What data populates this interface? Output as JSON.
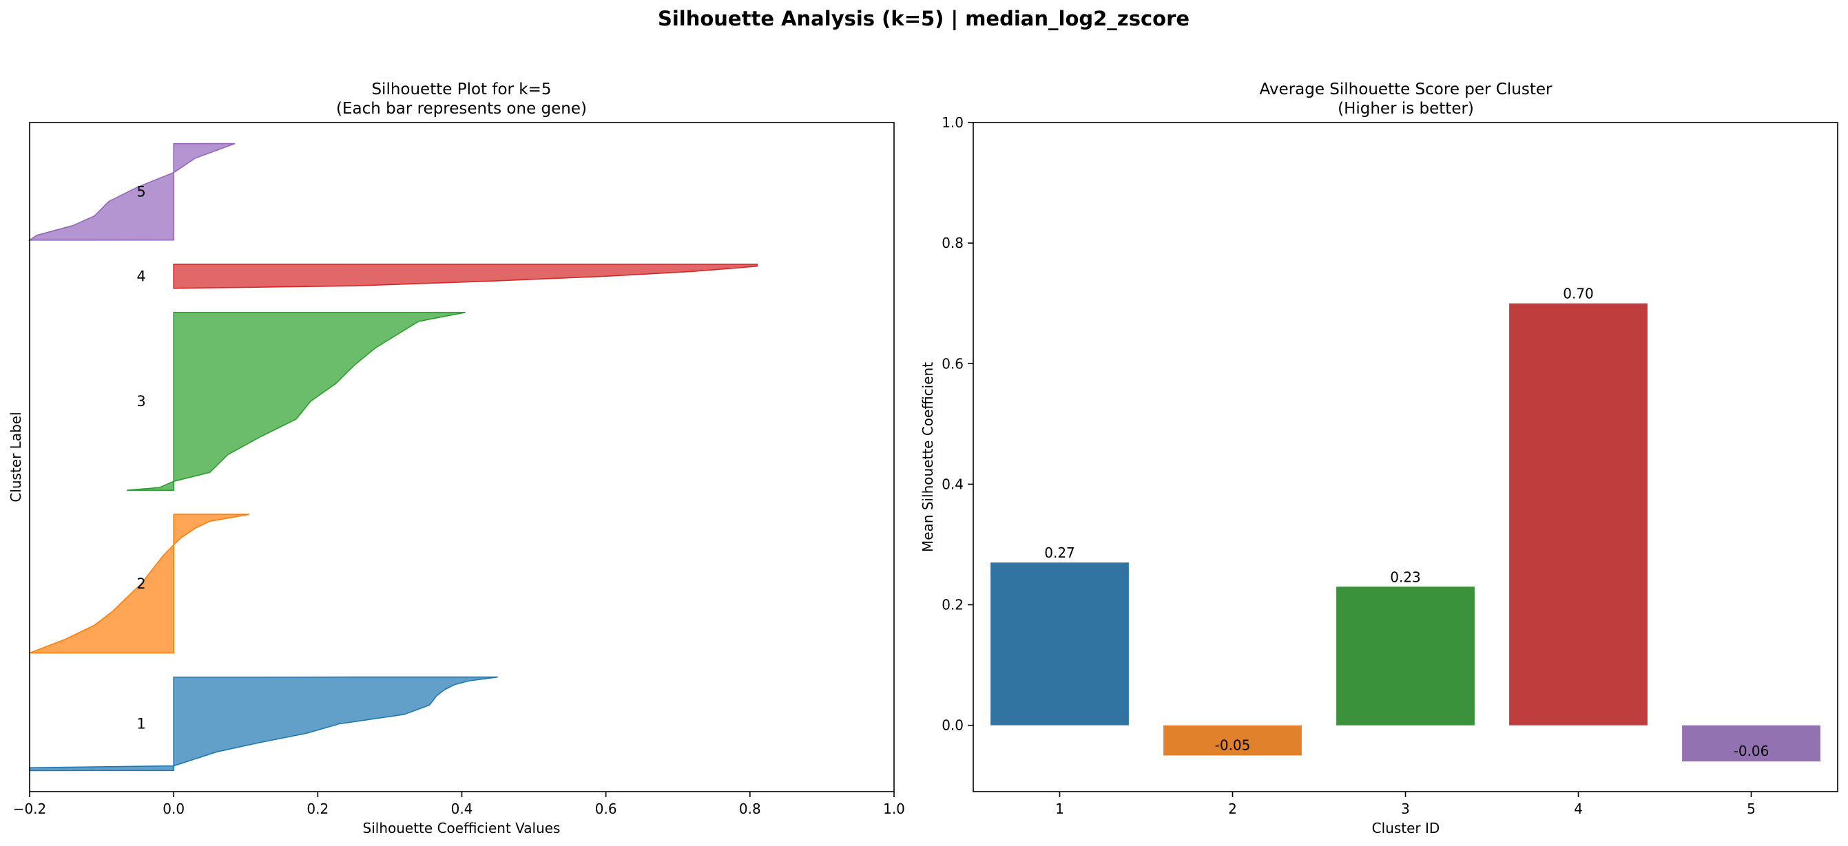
{
  "figure": {
    "suptitle": "Silhouette Analysis (k=5) | median_log2_zscore"
  },
  "chart_data": [
    {
      "type": "area",
      "title_line1": "Silhouette Plot for k=5",
      "title_line2": "(Each bar represents one gene)",
      "xlabel": "Silhouette Coefficient Values",
      "ylabel": "Cluster Label",
      "xlim": [
        -0.2,
        1.0
      ],
      "xticks": [
        -0.2,
        0.0,
        0.2,
        0.4,
        0.6,
        0.8,
        1.0
      ],
      "xtick_labels": [
        "−0.2",
        "0.0",
        "0.2",
        "0.4",
        "0.6",
        "0.8",
        "1.0"
      ],
      "ylim": [
        0,
        1110
      ],
      "clusters": [
        {
          "label": "1",
          "color": "#1f77b4",
          "y_lower": 35,
          "y_upper": 190,
          "profile": [
            [
              0,
              0.45
            ],
            [
              0.04,
              0.41
            ],
            [
              0.08,
              0.39
            ],
            [
              0.14,
              0.375
            ],
            [
              0.2,
              0.365
            ],
            [
              0.3,
              0.355
            ],
            [
              0.4,
              0.32
            ],
            [
              0.5,
              0.23
            ],
            [
              0.6,
              0.185
            ],
            [
              0.7,
              0.12
            ],
            [
              0.8,
              0.06
            ],
            [
              0.9,
              0.02
            ],
            [
              0.95,
              0.0
            ],
            [
              0.97,
              -0.2
            ],
            [
              1.0,
              -0.2
            ]
          ]
        },
        {
          "label": "2",
          "color": "#ff7f0e",
          "y_lower": 230,
          "y_upper": 460,
          "profile": [
            [
              0,
              0.105
            ],
            [
              0.05,
              0.05
            ],
            [
              0.1,
              0.03
            ],
            [
              0.17,
              0.01
            ],
            [
              0.22,
              0.0
            ],
            [
              0.3,
              -0.015
            ],
            [
              0.4,
              -0.03
            ],
            [
              0.5,
              -0.045
            ],
            [
              0.6,
              -0.065
            ],
            [
              0.7,
              -0.085
            ],
            [
              0.8,
              -0.11
            ],
            [
              0.9,
              -0.15
            ],
            [
              0.96,
              -0.18
            ],
            [
              1.0,
              -0.2
            ]
          ]
        },
        {
          "label": "3",
          "color": "#2ca02c",
          "y_lower": 500,
          "y_upper": 795,
          "profile": [
            [
              0,
              0.405
            ],
            [
              0.05,
              0.34
            ],
            [
              0.1,
              0.32
            ],
            [
              0.2,
              0.28
            ],
            [
              0.3,
              0.25
            ],
            [
              0.4,
              0.225
            ],
            [
              0.5,
              0.19
            ],
            [
              0.6,
              0.17
            ],
            [
              0.7,
              0.12
            ],
            [
              0.8,
              0.075
            ],
            [
              0.9,
              0.05
            ],
            [
              0.95,
              0.0
            ],
            [
              0.985,
              -0.02
            ],
            [
              1.0,
              -0.065
            ]
          ]
        },
        {
          "label": "4",
          "color": "#d62728",
          "y_lower": 835,
          "y_upper": 875,
          "profile": [
            [
              0,
              0.81
            ],
            [
              0.08,
              0.81
            ],
            [
              0.15,
              0.785
            ],
            [
              0.3,
              0.72
            ],
            [
              0.5,
              0.6
            ],
            [
              0.7,
              0.44
            ],
            [
              0.9,
              0.25
            ],
            [
              1.0,
              0.0
            ]
          ]
        },
        {
          "label": "5",
          "color": "#9467bd",
          "y_lower": 915,
          "y_upper": 1075,
          "profile": [
            [
              0,
              0.085
            ],
            [
              0.15,
              0.03
            ],
            [
              0.3,
              0.0
            ],
            [
              0.45,
              -0.05
            ],
            [
              0.6,
              -0.09
            ],
            [
              0.75,
              -0.11
            ],
            [
              0.85,
              -0.14
            ],
            [
              0.95,
              -0.19
            ],
            [
              1.0,
              -0.2
            ]
          ]
        }
      ]
    },
    {
      "type": "bar",
      "title_line1": "Average Silhouette Score per Cluster",
      "title_line2": "(Higher is better)",
      "xlabel": "Cluster ID",
      "ylabel": "Mean Silhouette Coefficient",
      "ylim": [
        -0.11,
        1.0
      ],
      "yticks": [
        0.0,
        0.2,
        0.4,
        0.6,
        0.8,
        1.0
      ],
      "ytick_labels": [
        "0.0",
        "0.2",
        "0.4",
        "0.6",
        "0.8",
        "1.0"
      ],
      "categories": [
        "1",
        "2",
        "3",
        "4",
        "5"
      ],
      "values": [
        0.27,
        -0.05,
        0.23,
        0.7,
        -0.06
      ],
      "value_labels": [
        "0.27",
        "-0.05",
        "0.23",
        "0.70",
        "-0.06"
      ],
      "colors": [
        "#3274a1",
        "#e1812c",
        "#3a923a",
        "#c03d3e",
        "#9372b2"
      ]
    }
  ]
}
